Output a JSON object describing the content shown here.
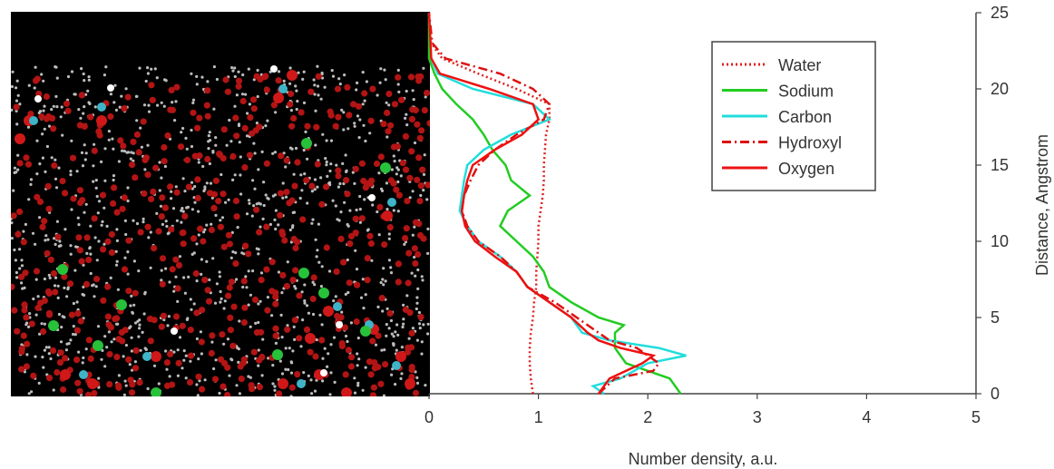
{
  "chart_data": {
    "type": "line",
    "orientation": "x-value-y-position",
    "xlabel": "Number density, a.u.",
    "ylabel": "Distance, Angstrom",
    "xlim": [
      0,
      5
    ],
    "ylim": [
      0,
      25
    ],
    "x_ticks": [
      "0",
      "1",
      "2",
      "3",
      "4",
      "5"
    ],
    "y_ticks": [
      "0",
      "5",
      "10",
      "15",
      "20",
      "25"
    ],
    "grid": false,
    "legend_position": "top-right",
    "series": [
      {
        "name": "Water",
        "color": "#e02020",
        "dash": "dotted",
        "points": [
          [
            0.95,
            0
          ],
          [
            0.93,
            1
          ],
          [
            0.92,
            2
          ],
          [
            0.92,
            3
          ],
          [
            0.93,
            4
          ],
          [
            0.95,
            5
          ],
          [
            0.96,
            6
          ],
          [
            0.98,
            7
          ],
          [
            0.98,
            8
          ],
          [
            0.99,
            9
          ],
          [
            1.0,
            10
          ],
          [
            1.0,
            11
          ],
          [
            1.02,
            12
          ],
          [
            1.04,
            13
          ],
          [
            1.05,
            14
          ],
          [
            1.05,
            15
          ],
          [
            1.06,
            16
          ],
          [
            1.07,
            17
          ],
          [
            1.1,
            18
          ],
          [
            1.1,
            19
          ],
          [
            0.8,
            20
          ],
          [
            0.45,
            21
          ],
          [
            0.12,
            22
          ],
          [
            0.02,
            23
          ],
          [
            0.0,
            24
          ],
          [
            0.0,
            25
          ]
        ]
      },
      {
        "name": "Sodium",
        "color": "#22cc22",
        "dash": "solid",
        "points": [
          [
            2.3,
            0
          ],
          [
            2.2,
            1
          ],
          [
            2.0,
            1.5
          ],
          [
            1.8,
            2
          ],
          [
            1.7,
            3
          ],
          [
            1.7,
            4
          ],
          [
            1.78,
            4.5
          ],
          [
            1.55,
            5
          ],
          [
            1.3,
            6
          ],
          [
            1.1,
            7
          ],
          [
            1.05,
            8
          ],
          [
            0.95,
            9
          ],
          [
            0.8,
            10
          ],
          [
            0.65,
            11
          ],
          [
            0.72,
            12
          ],
          [
            0.92,
            13
          ],
          [
            0.75,
            14
          ],
          [
            0.7,
            15
          ],
          [
            0.58,
            16
          ],
          [
            0.5,
            17
          ],
          [
            0.4,
            18
          ],
          [
            0.25,
            19
          ],
          [
            0.12,
            20
          ],
          [
            0.05,
            21
          ],
          [
            0.0,
            22
          ],
          [
            0.0,
            25
          ]
        ]
      },
      {
        "name": "Carbon",
        "color": "#22dddd",
        "dash": "solid",
        "points": [
          [
            1.6,
            0
          ],
          [
            1.5,
            0.5
          ],
          [
            1.75,
            1
          ],
          [
            2.0,
            2
          ],
          [
            2.35,
            2.5
          ],
          [
            2.1,
            3
          ],
          [
            1.65,
            3.5
          ],
          [
            1.4,
            4
          ],
          [
            1.3,
            5
          ],
          [
            1.1,
            6
          ],
          [
            0.9,
            7
          ],
          [
            0.8,
            8
          ],
          [
            0.65,
            9
          ],
          [
            0.45,
            10
          ],
          [
            0.35,
            11
          ],
          [
            0.28,
            12
          ],
          [
            0.3,
            13
          ],
          [
            0.32,
            14
          ],
          [
            0.35,
            15
          ],
          [
            0.5,
            16
          ],
          [
            0.75,
            17
          ],
          [
            1.1,
            18
          ],
          [
            0.95,
            19
          ],
          [
            0.4,
            20
          ],
          [
            0.08,
            21
          ],
          [
            0.02,
            22
          ],
          [
            0.0,
            25
          ]
        ]
      },
      {
        "name": "Hydroxyl",
        "color": "#dd1111",
        "dash": "dashdot",
        "points": [
          [
            1.55,
            0
          ],
          [
            1.7,
            1
          ],
          [
            2.05,
            1.5
          ],
          [
            2.1,
            2
          ],
          [
            1.9,
            3
          ],
          [
            1.65,
            3.5
          ],
          [
            1.55,
            4
          ],
          [
            1.35,
            5
          ],
          [
            1.15,
            6
          ],
          [
            0.9,
            7
          ],
          [
            0.8,
            8
          ],
          [
            0.65,
            9
          ],
          [
            0.45,
            10
          ],
          [
            0.35,
            11
          ],
          [
            0.3,
            12
          ],
          [
            0.32,
            13
          ],
          [
            0.38,
            14
          ],
          [
            0.45,
            15
          ],
          [
            0.6,
            16
          ],
          [
            0.8,
            17
          ],
          [
            1.05,
            18
          ],
          [
            1.1,
            19
          ],
          [
            0.95,
            20
          ],
          [
            0.65,
            21
          ],
          [
            0.15,
            22
          ],
          [
            0.03,
            23
          ],
          [
            0.0,
            25
          ]
        ]
      },
      {
        "name": "Oxygen",
        "color": "#ee1111",
        "dash": "solid",
        "points": [
          [
            1.55,
            0
          ],
          [
            1.65,
            1
          ],
          [
            1.95,
            2
          ],
          [
            2.05,
            2.5
          ],
          [
            1.75,
            3
          ],
          [
            1.55,
            3.5
          ],
          [
            1.45,
            4
          ],
          [
            1.3,
            5
          ],
          [
            1.1,
            6
          ],
          [
            0.9,
            7
          ],
          [
            0.8,
            8
          ],
          [
            0.6,
            9
          ],
          [
            0.42,
            10
          ],
          [
            0.33,
            11
          ],
          [
            0.3,
            12
          ],
          [
            0.32,
            13
          ],
          [
            0.35,
            14
          ],
          [
            0.4,
            15
          ],
          [
            0.6,
            16
          ],
          [
            0.85,
            17
          ],
          [
            1.0,
            18
          ],
          [
            0.95,
            19
          ],
          [
            0.55,
            20
          ],
          [
            0.1,
            21
          ],
          [
            0.02,
            22
          ],
          [
            0.0,
            25
          ]
        ]
      }
    ]
  }
}
